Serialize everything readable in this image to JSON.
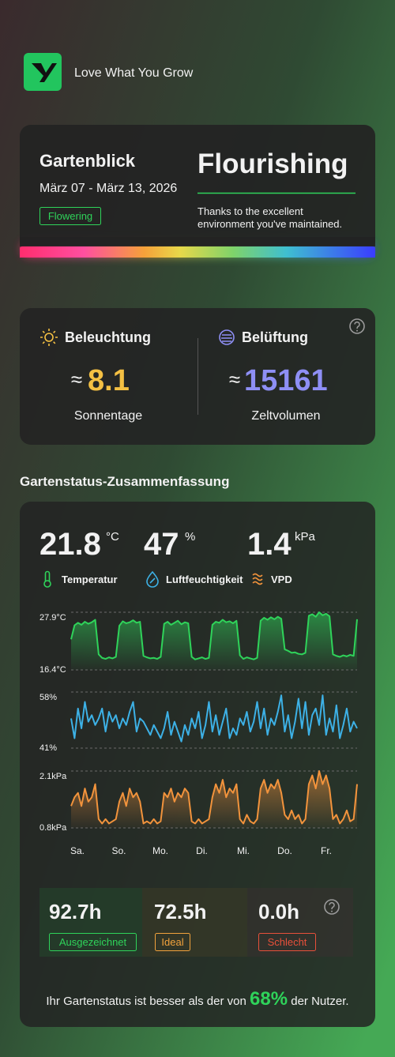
{
  "header": {
    "brand": "Love What You Grow"
  },
  "overview": {
    "title": "Gartenblick",
    "date_range": "März 07 - März 13, 2026",
    "stage": "Flowering",
    "status": "Flourishing",
    "message_lines": [
      "Thanks to the excellent",
      "environment you've maintained."
    ]
  },
  "environment": {
    "light": {
      "label": "Beleuchtung",
      "approx": "≈",
      "value": "8.1",
      "caption": "Sonnentage"
    },
    "ventilation": {
      "label": "Belüftung",
      "approx": "≈",
      "value": "15161",
      "caption": "Zeltvolumen"
    }
  },
  "summary": {
    "title": "Gartenstatus-Zusammenfassung",
    "metrics": [
      {
        "value": "21.8",
        "unit": "°C",
        "label": "Temperatur"
      },
      {
        "value": "47",
        "unit": "%",
        "label": "Luftfeuchtigkeit"
      },
      {
        "value": "1.4",
        "unit": "kPa",
        "label": "VPD"
      }
    ],
    "days": [
      "Sa.",
      "So.",
      "Mo.",
      "Di.",
      "Mi.",
      "Do.",
      "Fr."
    ],
    "durations": [
      {
        "value": "92.7h",
        "label": "Ausgezeichnet"
      },
      {
        "value": "72.5h",
        "label": "Ideal"
      },
      {
        "value": "0.0h",
        "label": "Schlecht"
      }
    ],
    "footer": {
      "before": "Ihr Gartenstatus ist besser als der von",
      "percent": "68%",
      "after": "der Nutzer."
    }
  },
  "chart_data": [
    {
      "type": "area",
      "color": "#2fd35a",
      "values": [
        22.5,
        25.3,
        25.8,
        25.4,
        26.0,
        25.6,
        25.9,
        26.4,
        19.5,
        18.8,
        18.6,
        18.9,
        18.7,
        19.0,
        25.2,
        26.1,
        25.7,
        25.9,
        26.3,
        25.8,
        26.0,
        19.2,
        18.9,
        18.7,
        18.8,
        18.6,
        19.0,
        25.6,
        26.0,
        25.4,
        25.8,
        26.2,
        25.5,
        25.9,
        25.7,
        19.0,
        18.5,
        18.7,
        18.9,
        18.6,
        18.8,
        25.4,
        26.0,
        25.8,
        26.4,
        25.9,
        26.1,
        25.7,
        26.2,
        19.3,
        18.6,
        18.9,
        18.7,
        18.5,
        18.8,
        26.2,
        26.8,
        26.4,
        26.9,
        26.5,
        27.0,
        26.6,
        20.5,
        20.2,
        19.8,
        19.9,
        19.6,
        19.5,
        19.8,
        27.2,
        27.5,
        27.0,
        27.9,
        27.3,
        27.6,
        27.1,
        19.5,
        19.2,
        19.0,
        19.3,
        19.1,
        19.4,
        19.2,
        26.5
      ],
      "ylim": [
        16.4,
        27.9
      ],
      "yticks": [
        {
          "value": 27.9,
          "label": "27.9°C"
        },
        {
          "value": 16.4,
          "label": "16.4°C"
        }
      ]
    },
    {
      "type": "line",
      "color": "#3db1e6",
      "values": [
        50,
        44,
        53,
        47,
        55,
        49,
        51,
        48,
        50,
        53,
        46,
        52,
        49,
        51,
        47,
        50,
        48,
        52,
        55,
        46,
        50,
        49,
        47,
        45,
        48,
        46,
        44,
        47,
        52,
        45,
        49,
        46,
        43,
        48,
        45,
        50,
        47,
        52,
        44,
        48,
        55,
        46,
        51,
        45,
        49,
        53,
        44,
        47,
        45,
        50,
        48,
        52,
        46,
        49,
        55,
        47,
        53,
        45,
        50,
        48,
        52,
        57,
        46,
        51,
        44,
        49,
        56,
        47,
        55,
        45,
        51,
        53,
        48,
        57,
        45,
        50,
        46,
        54,
        44,
        48,
        53,
        46,
        49,
        47
      ],
      "ylim": [
        41,
        58
      ],
      "yticks": [
        {
          "value": 58,
          "label": "58%"
        },
        {
          "value": 41,
          "label": "41%"
        }
      ]
    },
    {
      "type": "area",
      "color": "#f2933c",
      "values": [
        1.3,
        1.5,
        1.6,
        1.3,
        1.7,
        1.4,
        1.5,
        1.8,
        1.0,
        0.9,
        1.0,
        0.9,
        0.95,
        1.0,
        1.4,
        1.6,
        1.3,
        1.7,
        1.5,
        1.6,
        1.4,
        0.9,
        0.95,
        0.9,
        1.0,
        0.9,
        0.95,
        1.6,
        1.5,
        1.7,
        1.4,
        1.6,
        1.5,
        1.7,
        1.6,
        0.95,
        0.9,
        1.0,
        0.9,
        0.95,
        1.0,
        1.5,
        1.8,
        1.6,
        1.9,
        1.5,
        1.7,
        1.6,
        1.8,
        1.0,
        0.9,
        1.1,
        0.95,
        0.9,
        1.0,
        1.7,
        1.9,
        1.6,
        1.8,
        1.7,
        1.9,
        1.6,
        1.1,
        1.0,
        1.2,
        1.0,
        1.1,
        0.9,
        1.0,
        1.8,
        2.0,
        1.7,
        2.1,
        1.8,
        2.0,
        1.7,
        1.0,
        1.1,
        0.9,
        1.0,
        1.2,
        0.95,
        1.0,
        1.8
      ],
      "ylim": [
        0.8,
        2.1
      ],
      "yticks": [
        {
          "value": 2.1,
          "label": "2.1kPa"
        },
        {
          "value": 0.8,
          "label": "0.8kPa"
        }
      ]
    }
  ]
}
